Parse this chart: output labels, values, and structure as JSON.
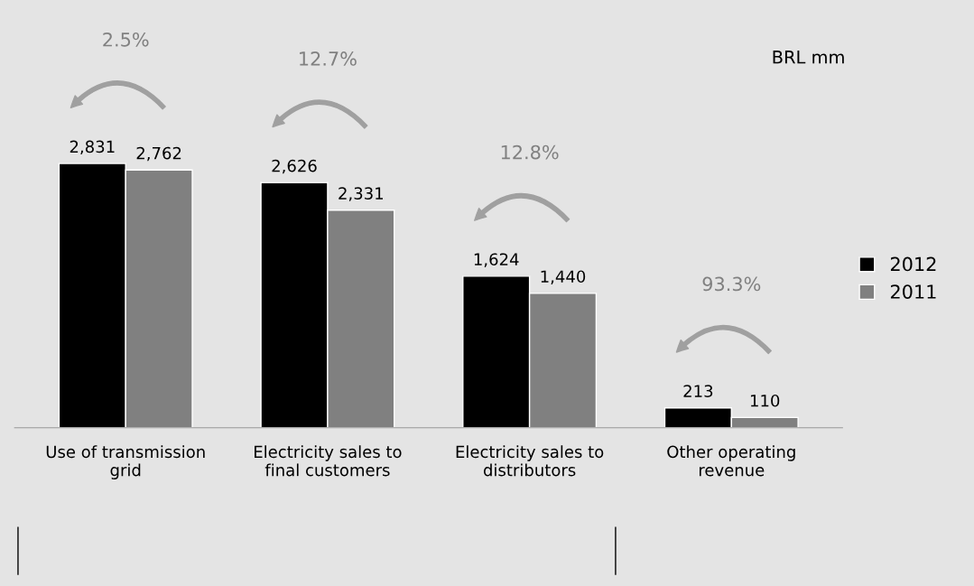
{
  "chart_data": {
    "type": "bar",
    "categories": [
      "Use of transmission\ngrid",
      "Electricity sales to\nfinal customers",
      "Electricity sales to\ndistributors",
      "Other operating\nrevenue"
    ],
    "series": [
      {
        "name": "2012",
        "color": "#000000",
        "values": [
          2831,
          2626,
          1624,
          213
        ],
        "value_labels": [
          "2,831",
          "2,626",
          "1,624",
          "213"
        ]
      },
      {
        "name": "2011",
        "color": "#808080",
        "values": [
          2762,
          2331,
          1440,
          110
        ],
        "value_labels": [
          "2,762",
          "2,331",
          "1,440",
          "110"
        ]
      }
    ],
    "annotations": [
      "2.5%",
      "12.7%",
      "12.8%",
      "93.3%",
      "BRL mm"
    ],
    "legend": "right"
  }
}
